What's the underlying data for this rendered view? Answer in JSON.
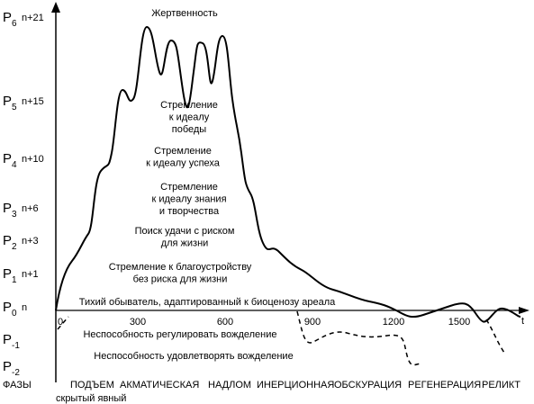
{
  "levels": [
    {
      "symbol": "P",
      "index": "6",
      "label": "n+21"
    },
    {
      "symbol": "P",
      "index": "5",
      "label": "n+15"
    },
    {
      "symbol": "P",
      "index": "4",
      "label": "n+10"
    },
    {
      "symbol": "P",
      "index": "3",
      "label": "n+6"
    },
    {
      "symbol": "P",
      "index": "2",
      "label": "n+3"
    },
    {
      "symbol": "P",
      "index": "1",
      "label": "n+1"
    },
    {
      "symbol": "P",
      "index": "0",
      "label": "n"
    },
    {
      "symbol": "P",
      "index": "-1"
    },
    {
      "symbol": "P",
      "index": "-2"
    }
  ],
  "time_axis": {
    "label": "t",
    "ticks": [
      "0",
      "300",
      "600",
      "900",
      "1200",
      "1500"
    ]
  },
  "annotations": [
    [
      "Жертвенность"
    ],
    [
      "Стремление",
      "к идеалу",
      "победы"
    ],
    [
      "Стремление",
      "к идеалу успеха"
    ],
    [
      "Стремление",
      "к идеалу знания",
      "и творчества"
    ],
    [
      "Поиск удачи с риском",
      "для жизни"
    ],
    [
      "Стремление к благоустройству",
      "без риска для жизни"
    ],
    [
      "Тихий обыватель, адаптированный к биоценозу ареала"
    ],
    [
      "Неспособность регулировать вожделение"
    ],
    [
      "Неспособность удовлетворять вожделение"
    ]
  ],
  "phases": {
    "title": "ФАЗЫ",
    "items": [
      "ПОДЪЕМ",
      "АКМАТИЧЕСКАЯ",
      "НАДЛОМ",
      "ИНЕРЦИОННАЯ",
      "ОБСКУРАЦИЯ",
      "РЕГЕНЕРАЦИЯ",
      "РЕЛИКТ"
    ],
    "subphases": "скрытый явный"
  }
}
